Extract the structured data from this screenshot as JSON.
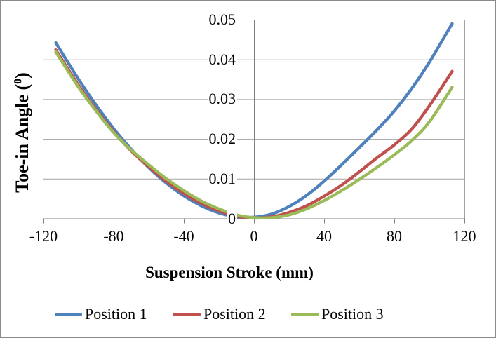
{
  "chart_data": {
    "type": "line",
    "title": "",
    "xlabel": "Suspension Stroke (mm)",
    "ylabel_prefix": "Toe-in Angle (",
    "ylabel_superscript": "0",
    "ylabel_suffix": ")",
    "xlim": [
      -120,
      120
    ],
    "ylim": [
      0,
      0.05
    ],
    "x_tick_labels": [
      "-120",
      "-80",
      "-40",
      "0",
      "40",
      "80",
      "120"
    ],
    "x_tick_values": [
      -120,
      -80,
      -40,
      0,
      40,
      80,
      120
    ],
    "y_tick_labels": [
      "0",
      "0.01",
      "0.02",
      "0.03",
      "0.04",
      "0.05"
    ],
    "y_tick_values": [
      0,
      0.01,
      0.02,
      0.03,
      0.04,
      0.05
    ],
    "grid": "horizontal",
    "legend_position": "bottom",
    "x": [
      -113,
      -100,
      -90,
      -80,
      -70,
      -60,
      -50,
      -40,
      -30,
      -20,
      -10,
      0,
      10,
      20,
      30,
      40,
      50,
      60,
      70,
      80,
      90,
      100,
      113
    ],
    "series": [
      {
        "name": "Position 1",
        "color": "#4F81BD",
        "values": [
          0.0442,
          0.035,
          0.0285,
          0.0226,
          0.0174,
          0.0128,
          0.0089,
          0.0057,
          0.0032,
          0.0014,
          0.0004,
          0.0003,
          0.0011,
          0.003,
          0.0058,
          0.0094,
          0.0135,
          0.0178,
          0.0222,
          0.027,
          0.0327,
          0.0393,
          0.049
        ]
      },
      {
        "name": "Position 2",
        "color": "#C0504D",
        "values": [
          0.0424,
          0.0335,
          0.0273,
          0.0218,
          0.017,
          0.013,
          0.0094,
          0.0063,
          0.0038,
          0.0019,
          0.0006,
          0.0001,
          0.0004,
          0.0015,
          0.0032,
          0.0056,
          0.0084,
          0.0117,
          0.0152,
          0.0185,
          0.0225,
          0.0283,
          0.037
        ]
      },
      {
        "name": "Position 3",
        "color": "#9BBB59",
        "values": [
          0.0419,
          0.033,
          0.027,
          0.0216,
          0.0172,
          0.0135,
          0.01,
          0.007,
          0.0044,
          0.0024,
          0.0009,
          0.0002,
          0.0002,
          0.0009,
          0.0024,
          0.0045,
          0.007,
          0.0098,
          0.0128,
          0.016,
          0.0196,
          0.0243,
          0.033
        ]
      }
    ]
  },
  "colors": {
    "background": "#FFFFFF",
    "gridline": "#A3A3A3",
    "axis": "#7F7F7F",
    "border": "#8A8A8A"
  },
  "legend": {
    "items": [
      {
        "label": "Position 1",
        "color": "#4F81BD"
      },
      {
        "label": "Position 2",
        "color": "#C0504D"
      },
      {
        "label": "Position 3",
        "color": "#9BBB59"
      }
    ]
  }
}
